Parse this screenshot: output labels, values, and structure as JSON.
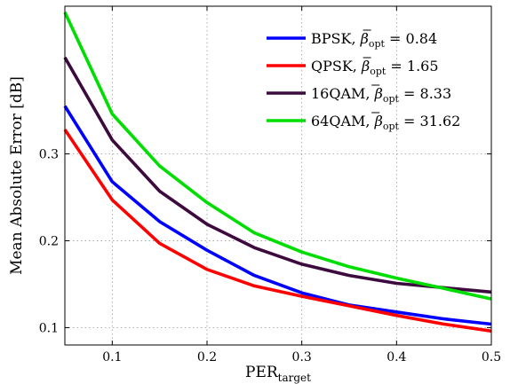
{
  "chart_data": {
    "type": "line",
    "xlabel_main": "PER",
    "xlabel_sub": "target",
    "ylabel": "Mean Absolute Error [dB]",
    "xlim": [
      0.05,
      0.5
    ],
    "ylim": [
      0.08,
      0.47
    ],
    "xticks": [
      0.1,
      0.2,
      0.3,
      0.4,
      0.5
    ],
    "yticks": [
      0.1,
      0.2,
      0.3
    ],
    "grid": true,
    "legend_position": "top-right",
    "x": [
      0.05,
      0.1,
      0.15,
      0.2,
      0.25,
      0.3,
      0.35,
      0.4,
      0.45,
      0.5
    ],
    "series": [
      {
        "name": "BPSK",
        "beta": "0.84",
        "color": "#0000ff",
        "values": [
          0.355,
          0.268,
          0.222,
          0.189,
          0.16,
          0.14,
          0.126,
          0.118,
          0.11,
          0.104
        ]
      },
      {
        "name": "QPSK",
        "beta": "1.65",
        "color": "#ff0000",
        "values": [
          0.328,
          0.247,
          0.197,
          0.167,
          0.148,
          0.136,
          0.125,
          0.114,
          0.104,
          0.096
        ]
      },
      {
        "name": "16QAM",
        "beta": "8.33",
        "color": "#3d0a3d",
        "values": [
          0.411,
          0.316,
          0.257,
          0.219,
          0.192,
          0.173,
          0.16,
          0.151,
          0.146,
          0.141
        ]
      },
      {
        "name": "64QAM",
        "beta": "31.62",
        "color": "#00dd00",
        "values": [
          0.463,
          0.346,
          0.286,
          0.244,
          0.209,
          0.187,
          0.17,
          0.157,
          0.145,
          0.133
        ]
      }
    ]
  }
}
